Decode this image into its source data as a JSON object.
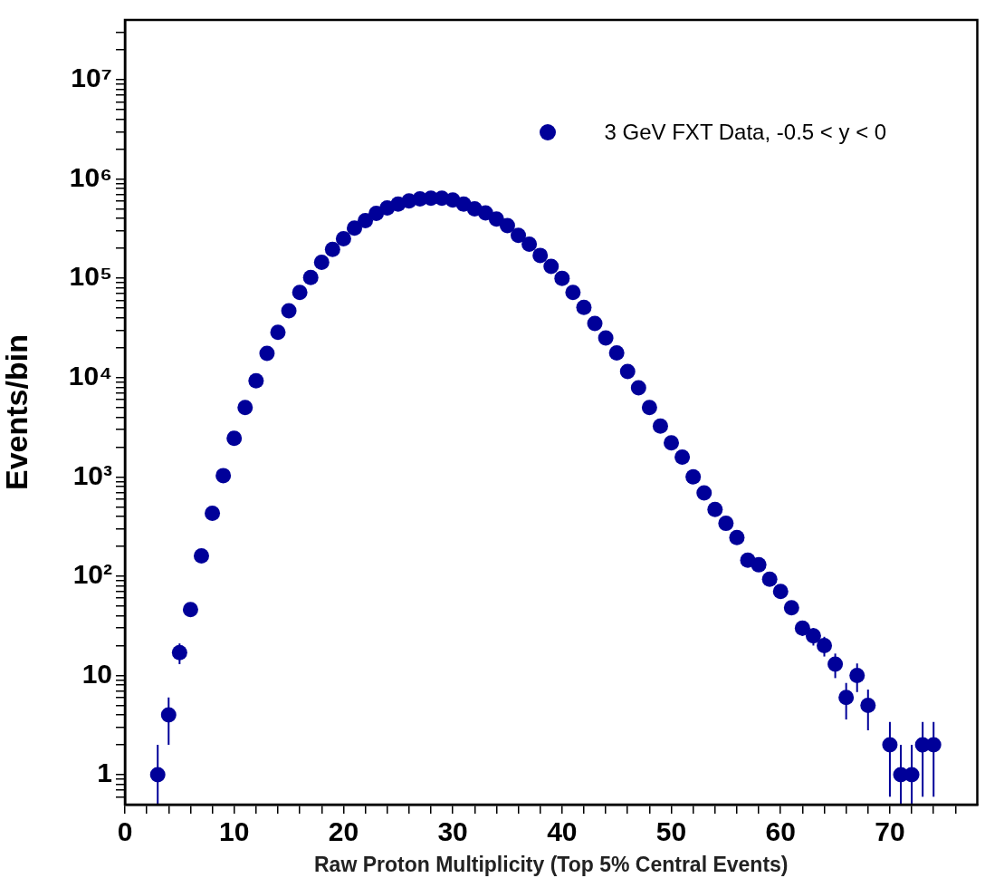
{
  "chart_data": {
    "type": "scatter",
    "xlabel": "Raw Proton Multiplicity (Top 5% Central Events)",
    "ylabel": "Events/bin",
    "log": "y",
    "legend": "top right",
    "marker": "circle",
    "xlim": [
      0,
      78
    ],
    "ylim": [
      0.5,
      40000000
    ],
    "xticks": [
      0,
      {
        "value": 2,
        "label": null
      },
      {
        "value": 4,
        "label": null
      },
      {
        "value": 6,
        "label": null
      },
      {
        "value": 8,
        "label": null
      },
      10,
      {
        "value": 12,
        "label": null
      },
      {
        "value": 14,
        "label": null
      },
      {
        "value": 16,
        "label": null
      },
      {
        "value": 18,
        "label": null
      },
      20,
      {
        "value": 22,
        "label": null
      },
      {
        "value": 24,
        "label": null
      },
      {
        "value": 26,
        "label": null
      },
      {
        "value": 28,
        "label": null
      },
      30,
      {
        "value": 32,
        "label": null
      },
      {
        "value": 34,
        "label": null
      },
      {
        "value": 36,
        "label": null
      },
      {
        "value": 38,
        "label": null
      },
      40,
      {
        "value": 42,
        "label": null
      },
      {
        "value": 44,
        "label": null
      },
      {
        "value": 46,
        "label": null
      },
      {
        "value": 48,
        "label": null
      },
      50,
      {
        "value": 52,
        "label": null
      },
      {
        "value": 54,
        "label": null
      },
      {
        "value": 56,
        "label": null
      },
      {
        "value": 58,
        "label": null
      },
      60,
      {
        "value": 62,
        "label": null
      },
      {
        "value": 64,
        "label": null
      },
      {
        "value": 66,
        "label": null
      },
      {
        "value": 68,
        "label": null
      },
      70,
      {
        "value": 72,
        "label": null
      },
      {
        "value": 74,
        "label": null
      },
      {
        "value": 76,
        "label": null
      }
    ],
    "yticks": [
      {
        "value": 0.6,
        "label": null
      },
      {
        "value": 0.7,
        "label": null
      },
      {
        "value": 0.8,
        "label": null
      },
      {
        "value": 0.9,
        "label": null
      },
      1,
      {
        "value": 2,
        "label": null
      },
      {
        "value": 3,
        "label": null
      },
      {
        "value": 4,
        "label": null
      },
      {
        "value": 5,
        "label": null
      },
      {
        "value": 6,
        "label": null
      },
      {
        "value": 7,
        "label": null
      },
      {
        "value": 8,
        "label": null
      },
      {
        "value": 9,
        "label": null
      },
      10,
      {
        "value": 20,
        "label": null
      },
      {
        "value": 30,
        "label": null
      },
      {
        "value": 40,
        "label": null
      },
      {
        "value": 50,
        "label": null
      },
      {
        "value": 60,
        "label": null
      },
      {
        "value": 70,
        "label": null
      },
      {
        "value": 80,
        "label": null
      },
      {
        "value": 90,
        "label": null
      },
      {
        "value": 100,
        "label": "10²"
      },
      {
        "value": 200,
        "label": null
      },
      {
        "value": 300,
        "label": null
      },
      {
        "value": 400,
        "label": null
      },
      {
        "value": 500,
        "label": null
      },
      {
        "value": 600,
        "label": null
      },
      {
        "value": 700,
        "label": null
      },
      {
        "value": 800,
        "label": null
      },
      {
        "value": 900,
        "label": null
      },
      {
        "value": 1000,
        "label": "10³"
      },
      {
        "value": 2000,
        "label": null
      },
      {
        "value": 3000,
        "label": null
      },
      {
        "value": 4000,
        "label": null
      },
      {
        "value": 5000,
        "label": null
      },
      {
        "value": 6000,
        "label": null
      },
      {
        "value": 7000,
        "label": null
      },
      {
        "value": 8000,
        "label": null
      },
      {
        "value": 9000,
        "label": null
      },
      {
        "value": 10000,
        "label": "10⁴"
      },
      {
        "value": 20000,
        "label": null
      },
      {
        "value": 30000,
        "label": null
      },
      {
        "value": 40000,
        "label": null
      },
      {
        "value": 50000,
        "label": null
      },
      {
        "value": 60000,
        "label": null
      },
      {
        "value": 70000,
        "label": null
      },
      {
        "value": 80000,
        "label": null
      },
      {
        "value": 90000,
        "label": null
      },
      {
        "value": 100000,
        "label": "10⁵"
      },
      {
        "value": 200000,
        "label": null
      },
      {
        "value": 300000,
        "label": null
      },
      {
        "value": 400000,
        "label": null
      },
      {
        "value": 500000,
        "label": null
      },
      {
        "value": 600000,
        "label": null
      },
      {
        "value": 700000,
        "label": null
      },
      {
        "value": 800000,
        "label": null
      },
      {
        "value": 900000,
        "label": null
      },
      {
        "value": 1000000,
        "label": "10⁶"
      },
      {
        "value": 2000000,
        "label": null
      },
      {
        "value": 3000000,
        "label": null
      },
      {
        "value": 4000000,
        "label": null
      },
      {
        "value": 5000000,
        "label": null
      },
      {
        "value": 6000000,
        "label": null
      },
      {
        "value": 7000000,
        "label": null
      },
      {
        "value": 8000000,
        "label": null
      },
      {
        "value": 9000000,
        "label": null
      },
      {
        "value": 10000000,
        "label": "10⁷"
      },
      {
        "value": 20000000,
        "label": null
      },
      {
        "value": 30000000,
        "label": null
      }
    ],
    "series": [
      {
        "name": "3 GeV FXT Data, -0.5 < y < 0",
        "color": "#000099",
        "x": [
          3,
          4,
          5,
          6,
          7,
          8,
          9,
          10,
          11,
          12,
          13,
          14,
          15,
          16,
          17,
          18,
          19,
          20,
          21,
          22,
          23,
          24,
          25,
          26,
          27,
          28,
          29,
          30,
          31,
          32,
          33,
          34,
          35,
          36,
          37,
          38,
          39,
          40,
          41,
          42,
          43,
          44,
          45,
          46,
          47,
          48,
          49,
          50,
          51,
          52,
          53,
          54,
          55,
          56,
          57,
          58,
          59,
          60,
          61,
          62,
          63,
          64,
          65,
          66,
          67,
          68,
          70,
          71,
          72,
          73,
          74
        ],
        "values": [
          1,
          4,
          17,
          46,
          160,
          430,
          1030,
          2450,
          5000,
          9300,
          17500,
          28500,
          47000,
          72000,
          102000,
          145000,
          195000,
          250000,
          320000,
          380000,
          450000,
          510000,
          560000,
          600000,
          630000,
          640000,
          640000,
          615000,
          560000,
          500000,
          455000,
          395000,
          340000,
          270000,
          220000,
          170000,
          132000,
          100000,
          72000,
          51000,
          35000,
          25000,
          17700,
          11500,
          7900,
          5000,
          3250,
          2200,
          1580,
          1000,
          690,
          470,
          340,
          245,
          145,
          130,
          93,
          70,
          48,
          30,
          25,
          20,
          13,
          6,
          10,
          5,
          2,
          1,
          1,
          2,
          2
        ],
        "errors": [
          [
            0.5,
            2
          ],
          2,
          4,
          7,
          null,
          null,
          null,
          null,
          null,
          null,
          null,
          null,
          null,
          null,
          null,
          null,
          null,
          null,
          null,
          null,
          null,
          null,
          null,
          null,
          null,
          null,
          null,
          null,
          null,
          null,
          null,
          null,
          null,
          null,
          null,
          null,
          null,
          null,
          null,
          null,
          null,
          null,
          null,
          null,
          null,
          null,
          null,
          null,
          null,
          null,
          null,
          null,
          null,
          null,
          null,
          null,
          null,
          null,
          null,
          5,
          5,
          4.5,
          3.6,
          2.4,
          3.2,
          2.2,
          1.4,
          [
            0.5,
            2
          ],
          [
            0.5,
            2
          ],
          1.4,
          1.4
        ]
      }
    ]
  }
}
